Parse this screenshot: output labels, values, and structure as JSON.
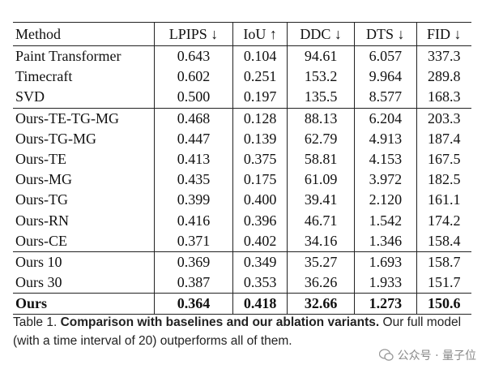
{
  "table": {
    "header": [
      "Method",
      "LPIPS ↓",
      "IoU ↑",
      "DDC ↓",
      "DTS ↓",
      "FID ↓"
    ],
    "groups": [
      {
        "rows": [
          [
            "Paint Transformer",
            "0.643",
            "0.104",
            "94.61",
            "6.057",
            "337.3"
          ],
          [
            "Timecraft",
            "0.602",
            "0.251",
            "153.2",
            "9.964",
            "289.8"
          ],
          [
            "SVD",
            "0.500",
            "0.197",
            "135.5",
            "8.577",
            "168.3"
          ]
        ]
      },
      {
        "rows": [
          [
            "Ours-TE-TG-MG",
            "0.468",
            "0.128",
            "88.13",
            "6.204",
            "203.3"
          ],
          [
            "Ours-TG-MG",
            "0.447",
            "0.139",
            "62.79",
            "4.913",
            "187.4"
          ],
          [
            "Ours-TE",
            "0.413",
            "0.375",
            "58.81",
            "4.153",
            "167.5"
          ],
          [
            "Ours-MG",
            "0.435",
            "0.175",
            "61.09",
            "3.972",
            "182.5"
          ],
          [
            "Ours-TG",
            "0.399",
            "0.400",
            "39.41",
            "2.120",
            "161.1"
          ],
          [
            "Ours-RN",
            "0.416",
            "0.396",
            "46.71",
            "1.542",
            "174.2"
          ],
          [
            "Ours-CE",
            "0.371",
            "0.402",
            "34.16",
            "1.346",
            "158.4"
          ]
        ]
      },
      {
        "rows": [
          [
            "Ours 10",
            "0.369",
            "0.349",
            "35.27",
            "1.693",
            "158.7"
          ],
          [
            "Ours 30",
            "0.387",
            "0.353",
            "36.26",
            "1.933",
            "151.7"
          ]
        ]
      },
      {
        "bold": true,
        "rows": [
          [
            "Ours",
            "0.364",
            "0.418",
            "32.66",
            "1.273",
            "150.6"
          ]
        ]
      }
    ]
  },
  "caption": {
    "label": "Table 1.",
    "title": "Comparison with baselines and our ablation variants.",
    "text": "Our full model (with a time interval of 20) outperforms all of them."
  },
  "watermark": "公众号 · 量子位"
}
